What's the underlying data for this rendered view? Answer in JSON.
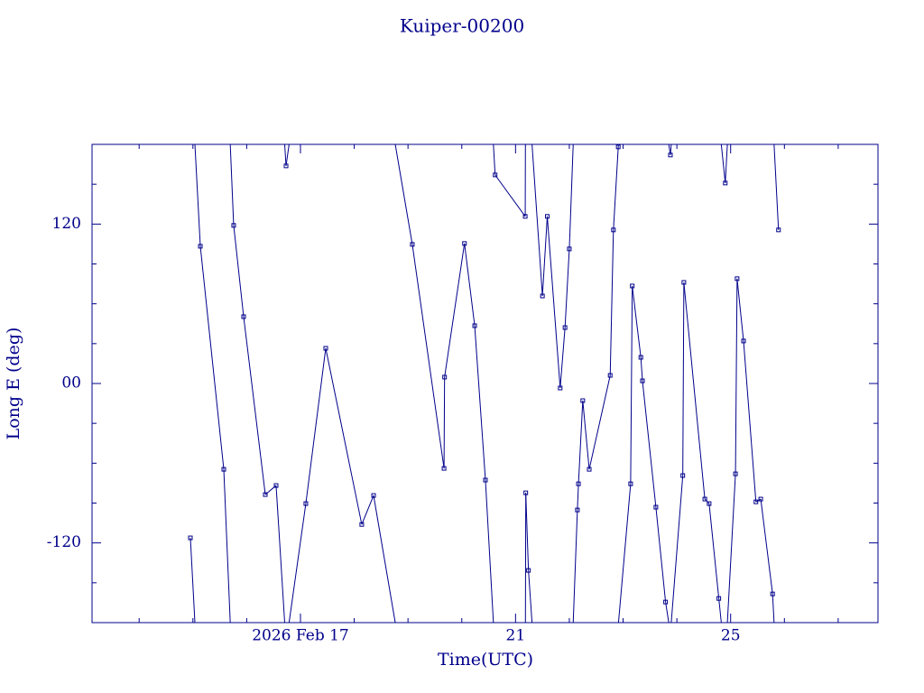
{
  "chart_data": {
    "type": "line",
    "title": "Kuiper-00200",
    "x_label": "Time(UTC)",
    "y_label": "Long E (deg)",
    "color": "#00008b",
    "xlim": [
      13.124,
      27.74
    ],
    "ylim": [
      -180,
      180
    ],
    "xticks": [
      {
        "value": 17,
        "label": "2026 Feb 17"
      },
      21,
      25
    ],
    "xminorticks": [
      14,
      15,
      16,
      18,
      19,
      20,
      22,
      23,
      24,
      26,
      27
    ],
    "yticks": [
      -120,
      {
        "value": 0,
        "label": "00"
      },
      120
    ],
    "yminorticks": [
      -150,
      -90,
      -60,
      -30,
      30,
      60,
      90,
      150
    ],
    "wrap": true,
    "x": [
      14.953,
      15.138,
      15.574,
      15.758,
      15.943,
      16.346,
      16.547,
      16.732,
      17.1,
      17.47,
      18.14,
      18.36,
      19.08,
      19.67,
      19.68,
      20.05,
      20.24,
      20.44,
      20.62,
      21.18,
      21.19,
      21.24,
      21.5,
      21.59,
      21.83,
      21.92,
      22.0,
      22.15,
      22.17,
      22.25,
      22.37,
      22.76,
      22.82,
      22.91,
      23.14,
      23.17,
      23.33,
      23.36,
      23.61,
      23.79,
      23.88,
      24.11,
      24.13,
      24.52,
      24.6,
      24.78,
      24.9,
      25.09,
      25.12,
      25.24,
      25.47,
      25.56,
      25.78,
      25.89
    ],
    "values": [
      -116.2,
      103.3,
      -64.6,
      119.0,
      50.3,
      -83.6,
      -76.8,
      163.8,
      -90.4,
      26.5,
      -106.1,
      -84.3,
      104.7,
      -63.9,
      4.8,
      105.4,
      43.5,
      -72.7,
      157.0,
      125.8,
      -82.3,
      -140.7,
      65.9,
      125.8,
      -3.4,
      42.1,
      101.3,
      -95.2,
      -75.5,
      -12.9,
      -64.6,
      6.1,
      115.6,
      178.1,
      -75.5,
      73.4,
      19.7,
      2.0,
      -93.1,
      -164.5,
      172.0,
      -69.3,
      76.1,
      -87.0,
      -90.4,
      -161.8,
      150.9,
      -68.0,
      78.9,
      32.0,
      -89.1,
      -87.0,
      -158.4,
      115.6
    ]
  }
}
